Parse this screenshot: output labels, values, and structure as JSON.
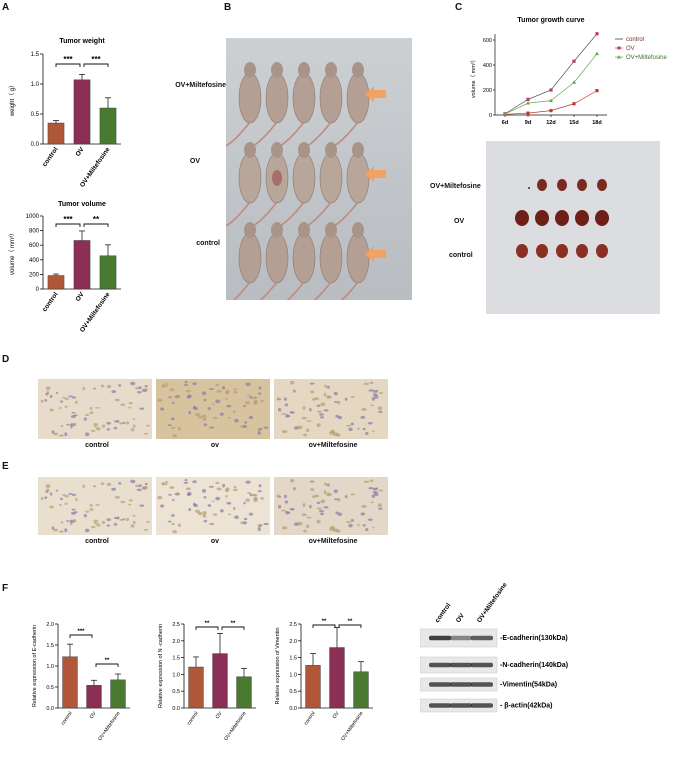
{
  "panels": {
    "A": "A",
    "B": "B",
    "C": "C",
    "D": "D",
    "E": "E",
    "F": "F"
  },
  "colors": {
    "control": "#b0573a",
    "ov": "#8c2f57",
    "miltefosine": "#4a7a32",
    "accent": "#f4a261"
  },
  "groups": {
    "control": "control",
    "ov": "OV",
    "miltefosine": "OV+Miltefosine"
  },
  "A_weight": {
    "title": "Tumor weight",
    "ylabel": "weight（ g）",
    "ylim": [
      0,
      1.5
    ],
    "yticks": [
      "0.0",
      "0.5",
      "1.0",
      "1.5"
    ],
    "sig1": "***",
    "sig2": "***"
  },
  "A_volume": {
    "title": "Tumor volume",
    "ylabel": "volume（ mm³）",
    "ylim": [
      0,
      1000
    ],
    "yticks": [
      "0",
      "200",
      "400",
      "600",
      "800",
      "1000"
    ],
    "sig1": "***",
    "sig2": "**"
  },
  "B": {
    "rows": [
      "OV+Miltefosine",
      "OV",
      "control"
    ]
  },
  "C": {
    "title": "Tumor growth curve",
    "ylabel": "volume（ mm³）",
    "ylim": [
      0,
      600
    ],
    "yticks": [
      "0",
      "200",
      "400",
      "600"
    ],
    "xticks": [
      "6d",
      "9d",
      "12d",
      "15d",
      "18d"
    ],
    "legend": [
      "control",
      "OV",
      "OV+Miltefosine"
    ],
    "tissue_rows": [
      "OV+Miltefosine",
      "OV",
      "control"
    ]
  },
  "D": {
    "labels": [
      "control",
      "ov",
      "ov+Miltefosine"
    ]
  },
  "E": {
    "labels": [
      "control",
      "ov",
      "ov+Miltefosine"
    ]
  },
  "F": {
    "ecad": {
      "ylabel": "Relative  expression of E-cadherin",
      "ylim": [
        0,
        2.0
      ],
      "yticks": [
        "0.0",
        "0.5",
        "1.0",
        "1.5",
        "2.0"
      ],
      "sig1": "***",
      "sig2": "**",
      "xticks": [
        "control",
        "OV",
        "OV+Miltefosine"
      ]
    },
    "ncad": {
      "ylabel": "Relative  expression of N -cadherin",
      "ylim": [
        0,
        2.5
      ],
      "yticks": [
        "0.0",
        "0.5",
        "1.0",
        "1.5",
        "2.0",
        "2.5"
      ],
      "sig1": "**",
      "sig2": "**",
      "xticks": [
        "control",
        "OV",
        "OV+Miltefosine"
      ]
    },
    "vim": {
      "ylabel": "Relative  expression of Vimentin",
      "ylim": [
        0,
        2.5
      ],
      "yticks": [
        "0.0",
        "0.5",
        "1.0",
        "1.5",
        "2.0",
        "2.5"
      ],
      "sig1": "**",
      "sig2": "**",
      "xticks": [
        "control",
        "OV",
        "OV+Miltefosine"
      ]
    },
    "blot": {
      "lanes": [
        "control",
        "OV",
        "OV+Miltefosine"
      ],
      "bands": [
        "-E-cadherin(130kDa)",
        "-N-cadherin(140kDa)",
        "-Vimentin(54kDa)",
        "- β-actin(42kDa)"
      ]
    }
  },
  "chart_data": [
    {
      "type": "bar",
      "title": "Tumor weight",
      "ylabel": "weight（ g）",
      "categories": [
        "control",
        "OV",
        "OV+Miltefosine"
      ],
      "values": [
        0.35,
        1.07,
        0.6
      ],
      "errors": [
        0.04,
        0.09,
        0.17
      ],
      "ylim": [
        0,
        1.5
      ]
    },
    {
      "type": "bar",
      "title": "Tumor volume",
      "ylabel": "volume（ mm³）",
      "categories": [
        "control",
        "OV",
        "OV+Miltefosine"
      ],
      "values": [
        185,
        665,
        455
      ],
      "errors": [
        20,
        130,
        150
      ],
      "ylim": [
        0,
        1000
      ]
    },
    {
      "type": "line",
      "title": "Tumor growth curve",
      "ylabel": "volume（ mm³）",
      "x": [
        "6d",
        "9d",
        "12d",
        "15d",
        "18d"
      ],
      "ylim": [
        0,
        600
      ],
      "series": [
        {
          "name": "control",
          "values": [
            5,
            15,
            35,
            90,
            195
          ]
        },
        {
          "name": "OV",
          "values": [
            10,
            125,
            200,
            430,
            650
          ]
        },
        {
          "name": "OV+Miltefosine",
          "values": [
            8,
            95,
            115,
            260,
            490
          ]
        }
      ]
    },
    {
      "type": "bar",
      "ylabel": "Relative  expression of E-cadherin",
      "categories": [
        "control",
        "OV",
        "OV+Miltefosine"
      ],
      "values": [
        1.22,
        0.54,
        0.67
      ],
      "errors": [
        0.3,
        0.12,
        0.14
      ],
      "ylim": [
        0,
        2.0
      ]
    },
    {
      "type": "bar",
      "ylabel": "Relative  expression of N -cadherin",
      "categories": [
        "control",
        "OV",
        "OV+Miltefosine"
      ],
      "values": [
        1.22,
        1.62,
        0.93
      ],
      "errors": [
        0.3,
        0.6,
        0.25
      ],
      "ylim": [
        0,
        2.5
      ]
    },
    {
      "type": "bar",
      "ylabel": "Relative  expression of Vimentin",
      "categories": [
        "control",
        "OV",
        "OV+Miltefosine"
      ],
      "values": [
        1.27,
        1.8,
        1.08
      ],
      "errors": [
        0.35,
        0.6,
        0.3
      ],
      "ylim": [
        0,
        2.5
      ]
    }
  ]
}
